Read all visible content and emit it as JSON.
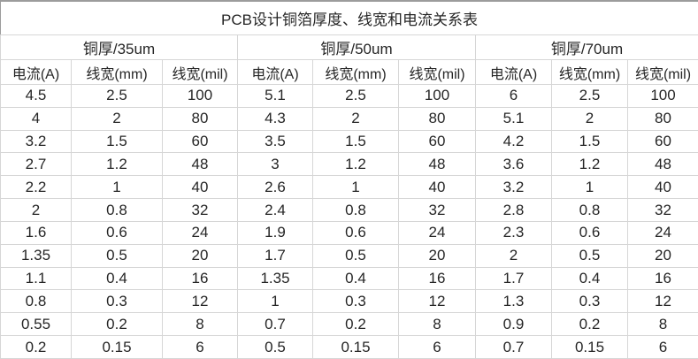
{
  "title": "PCB设计铜箔厚度、线宽和电流关系表",
  "colors": {
    "background": "#ffffff",
    "gridline": "#d6d6d6",
    "outer_border": "#9c9c9c",
    "text": "#262626"
  },
  "table": {
    "groups": [
      {
        "label": "铜厚/35um",
        "columns": [
          "电流(A)",
          "线宽(mm)",
          "线宽(mil)"
        ]
      },
      {
        "label": "铜厚/50um",
        "columns": [
          "电流(A)",
          "线宽(mm)",
          "线宽(mil)"
        ]
      },
      {
        "label": "铜厚/70um",
        "columns": [
          "电流(A)",
          "线宽(mm)",
          "线宽(mil)"
        ]
      }
    ],
    "rows": [
      [
        "4.5",
        "2.5",
        "100",
        "5.1",
        "2.5",
        "100",
        "6",
        "2.5",
        "100"
      ],
      [
        "4",
        "2",
        "80",
        "4.3",
        "2",
        "80",
        "5.1",
        "2",
        "80"
      ],
      [
        "3.2",
        "1.5",
        "60",
        "3.5",
        "1.5",
        "60",
        "4.2",
        "1.5",
        "60"
      ],
      [
        "2.7",
        "1.2",
        "48",
        "3",
        "1.2",
        "48",
        "3.6",
        "1.2",
        "48"
      ],
      [
        "2.2",
        "1",
        "40",
        "2.6",
        "1",
        "40",
        "3.2",
        "1",
        "40"
      ],
      [
        "2",
        "0.8",
        "32",
        "2.4",
        "0.8",
        "32",
        "2.8",
        "0.8",
        "32"
      ],
      [
        "1.6",
        "0.6",
        "24",
        "1.9",
        "0.6",
        "24",
        "2.3",
        "0.6",
        "24"
      ],
      [
        "1.35",
        "0.5",
        "20",
        "1.7",
        "0.5",
        "20",
        "2",
        "0.5",
        "20"
      ],
      [
        "1.1",
        "0.4",
        "16",
        "1.35",
        "0.4",
        "16",
        "1.7",
        "0.4",
        "16"
      ],
      [
        "0.8",
        "0.3",
        "12",
        "1",
        "0.3",
        "12",
        "1.3",
        "0.3",
        "12"
      ],
      [
        "0.55",
        "0.2",
        "8",
        "0.7",
        "0.2",
        "8",
        "0.9",
        "0.2",
        "8"
      ],
      [
        "0.2",
        "0.15",
        "6",
        "0.5",
        "0.15",
        "6",
        "0.7",
        "0.15",
        "6"
      ]
    ]
  },
  "chart_data": {
    "type": "table",
    "title": "PCB设计铜箔厚度、线宽和电流关系表",
    "column_groups": [
      "铜厚/35um",
      "铜厚/50um",
      "铜厚/70um"
    ],
    "columns_per_group": [
      "电流(A)",
      "线宽(mm)",
      "线宽(mil)"
    ],
    "trace_width_mm": [
      2.5,
      2,
      1.5,
      1.2,
      1,
      0.8,
      0.6,
      0.5,
      0.4,
      0.3,
      0.2,
      0.15
    ],
    "trace_width_mil": [
      100,
      80,
      60,
      48,
      40,
      32,
      24,
      20,
      16,
      12,
      8,
      6
    ],
    "current_A_35um": [
      4.5,
      4,
      3.2,
      2.7,
      2.2,
      2,
      1.6,
      1.35,
      1.1,
      0.8,
      0.55,
      0.2
    ],
    "current_A_50um": [
      5.1,
      4.3,
      3.5,
      3,
      2.6,
      2.4,
      1.9,
      1.7,
      1.35,
      1,
      0.7,
      0.5
    ],
    "current_A_70um": [
      6,
      5.1,
      4.2,
      3.6,
      3.2,
      2.8,
      2.3,
      2,
      1.7,
      1.3,
      0.9,
      0.7
    ]
  }
}
